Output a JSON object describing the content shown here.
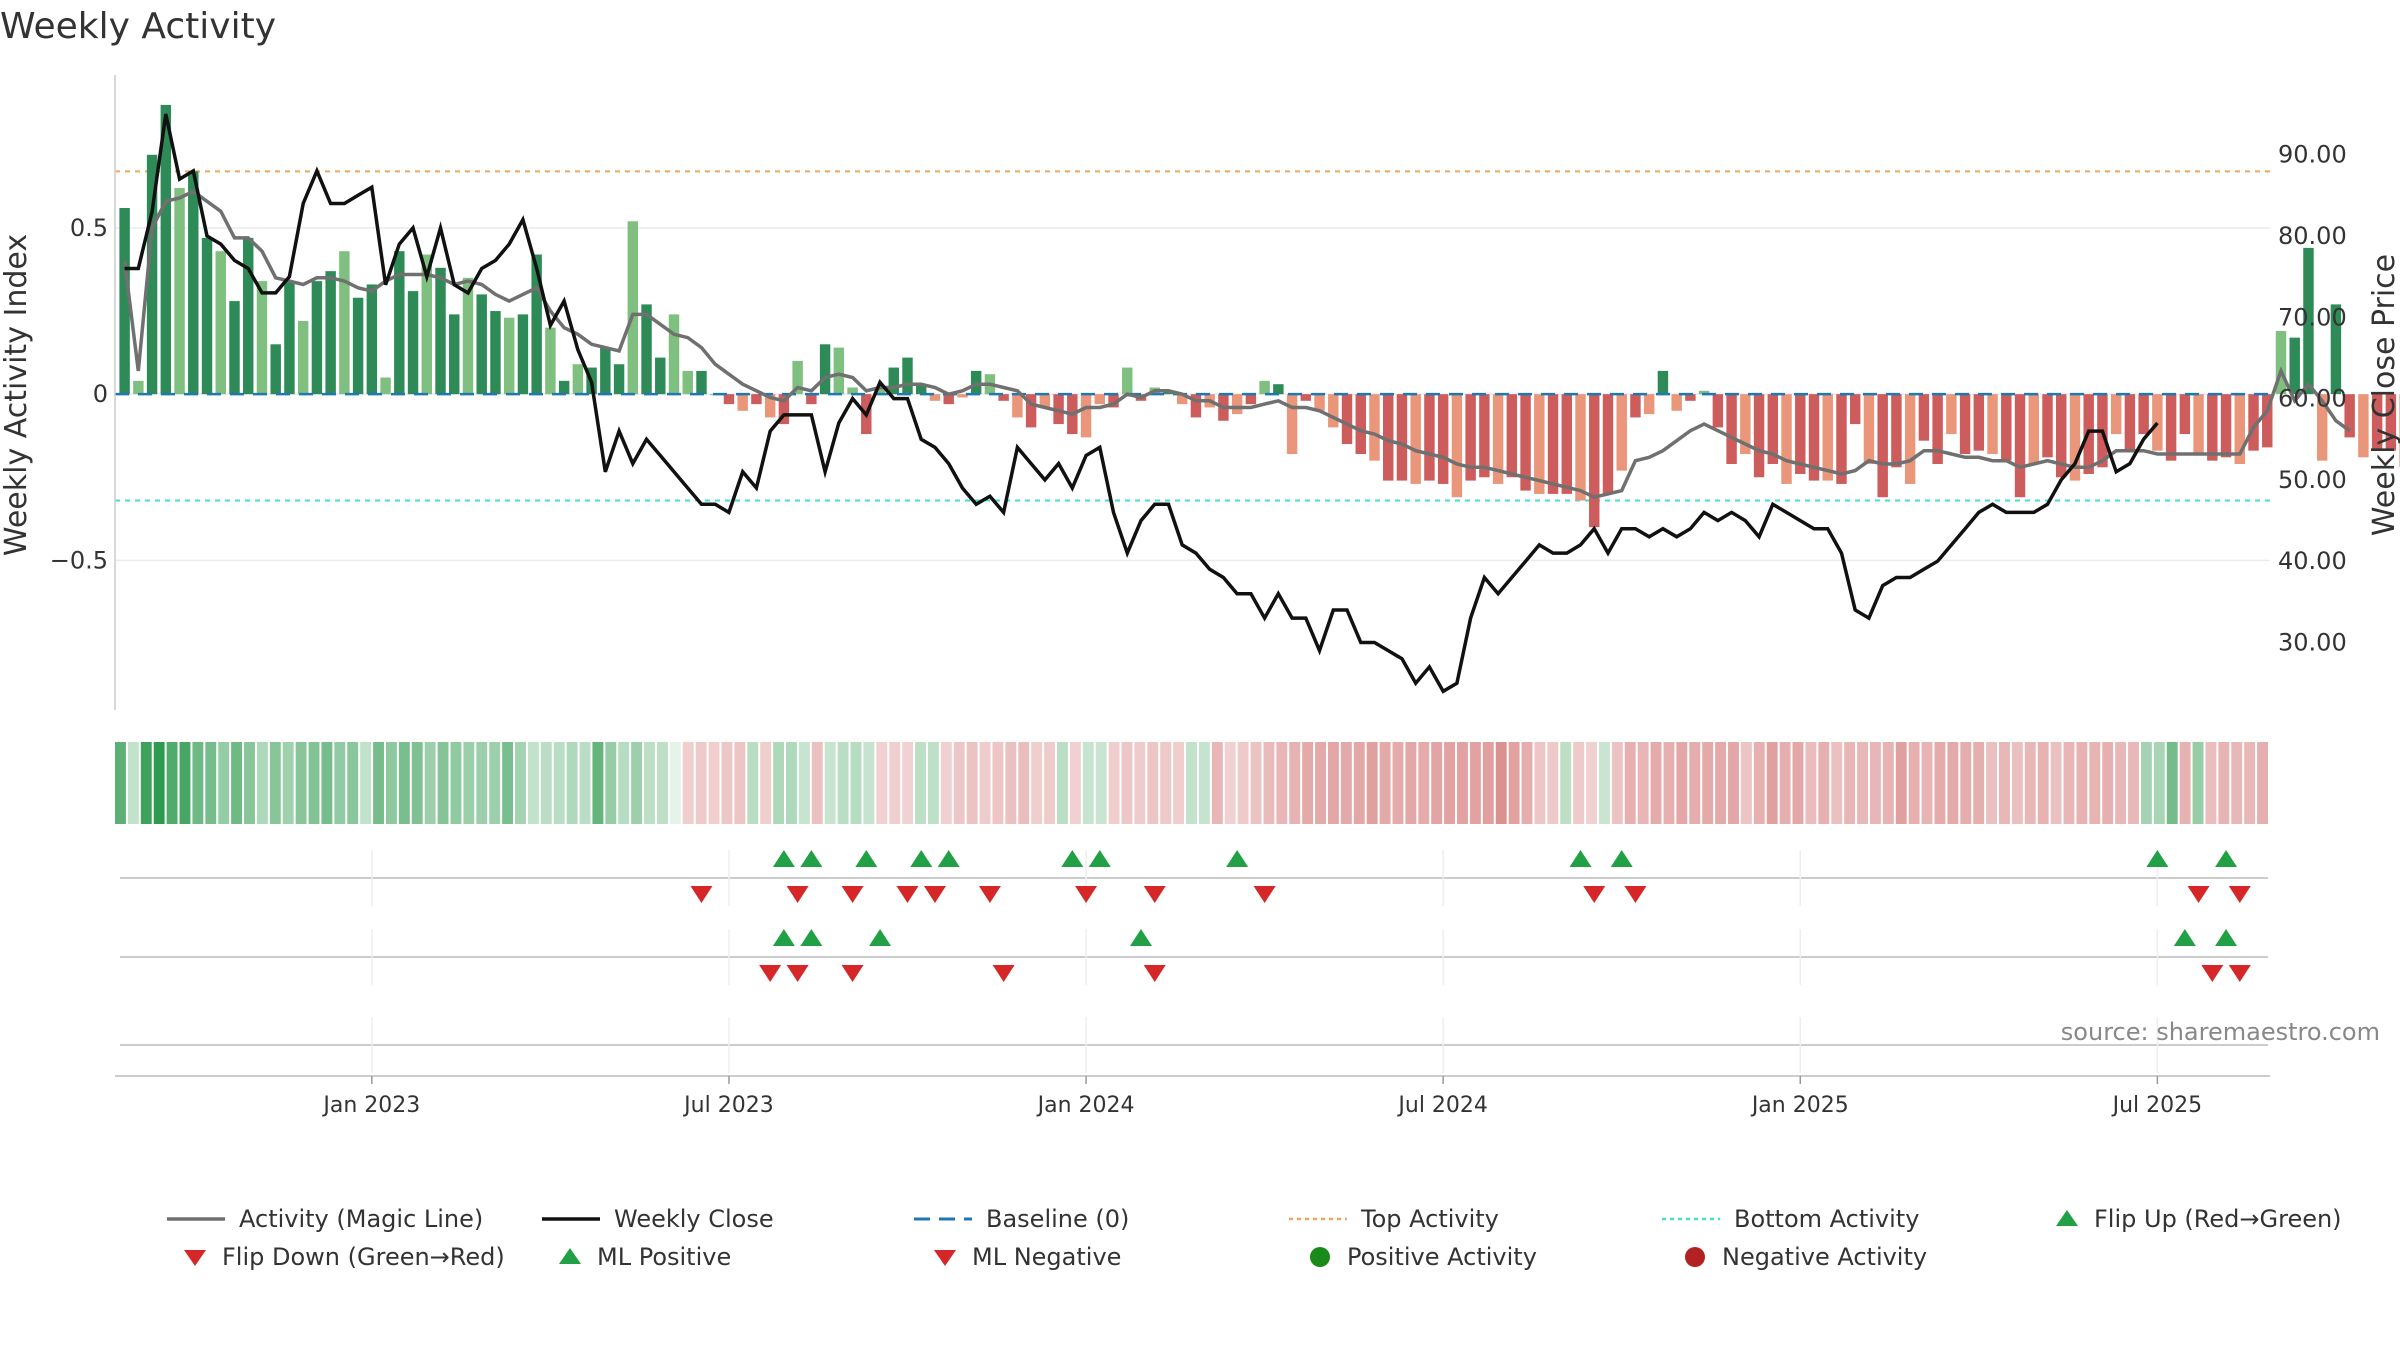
{
  "title": "Weekly Activity",
  "source": "source: sharemaestro.com",
  "colors": {
    "green_dark": "#2e8b57",
    "green_light": "#7fbf7f",
    "red_dark": "#cd5c5c",
    "red_light": "#e9967a",
    "magic_line": "#707070",
    "close_line": "#111111",
    "baseline": "#1f77b4",
    "top_line": "#f4a460",
    "bottom_line": "#40e0d0",
    "up_marker": "#22a045",
    "down_marker": "#d62728",
    "pos_dot": "#1a8a1a",
    "neg_dot": "#b22222"
  },
  "legend": [
    {
      "label": "Activity (Magic Line)",
      "icon": "gray-line"
    },
    {
      "label": "Weekly Close",
      "icon": "black-line"
    },
    {
      "label": "Baseline (0)",
      "icon": "blue-dashed-line"
    },
    {
      "label": "Top Activity",
      "icon": "orange-dotted-line"
    },
    {
      "label": "Bottom Activity",
      "icon": "cyan-dotted-line"
    },
    {
      "label": "Flip Up (Red→Green)",
      "icon": "green-triangle-up"
    },
    {
      "label": "Flip Down (Green→Red)",
      "icon": "red-triangle-down"
    },
    {
      "label": "ML Positive",
      "icon": "green-triangle-up"
    },
    {
      "label": "ML Negative",
      "icon": "red-triangle-down"
    },
    {
      "label": "Positive Activity",
      "icon": "green-circle"
    },
    {
      "label": "Negative Activity",
      "icon": "red-circle"
    }
  ],
  "chart_data": {
    "type": "bar",
    "title": "Weekly Activity",
    "ylabel": "Weekly Activity Index",
    "y2label": "Weekly Close Price",
    "ylim": [
      -0.95,
      0.96
    ],
    "y2lim": [
      21.7,
      99.8
    ],
    "y_ticks": [
      {
        "v": 0.5,
        "label": "0.5"
      },
      {
        "v": 0,
        "label": "0"
      },
      {
        "v": -0.5,
        "label": "−0.5"
      }
    ],
    "y2_ticks": [
      {
        "v": 90,
        "label": "90.00"
      },
      {
        "v": 80,
        "label": "80.00"
      },
      {
        "v": 70,
        "label": "70.00"
      },
      {
        "v": 60,
        "label": "60.00"
      },
      {
        "v": 50,
        "label": "50.00"
      },
      {
        "v": 40,
        "label": "40.00"
      },
      {
        "v": 30,
        "label": "30.00"
      }
    ],
    "x_ticks": [
      {
        "week": 18,
        "label": "Jan 2023"
      },
      {
        "week": 44,
        "label": "Jul 2023"
      },
      {
        "week": 70,
        "label": "Jan 2024"
      },
      {
        "week": 96,
        "label": "Jul 2024"
      },
      {
        "week": 122,
        "label": "Jan 2025"
      },
      {
        "week": 148,
        "label": "Jul 2025"
      }
    ],
    "x_range": [
      -0.7,
      156.2
    ],
    "top_activity": 0.67,
    "bottom_activity": -0.32,
    "baseline": 0,
    "activity": [
      0.56,
      0.04,
      0.72,
      0.87,
      0.62,
      0.67,
      0.47,
      0.43,
      0.28,
      0.47,
      0.34,
      0.15,
      0.34,
      0.22,
      0.34,
      0.37,
      0.43,
      0.29,
      0.33,
      0.05,
      0.43,
      0.31,
      0.42,
      0.38,
      0.24,
      0.35,
      0.3,
      0.25,
      0.23,
      0.24,
      0.42,
      0.2,
      0.04,
      0.09,
      0.08,
      0.14,
      0.09,
      0.52,
      0.27,
      0.11,
      0.24,
      0.07,
      0.07,
      0,
      -0.03,
      -0.05,
      -0.03,
      -0.07,
      -0.09,
      0.1,
      -0.03,
      0.15,
      0.14,
      0.02,
      -0.12,
      0.02,
      0.08,
      0.11,
      0.03,
      -0.02,
      -0.03,
      -0.01,
      0.07,
      0.06,
      -0.02,
      -0.07,
      -0.1,
      -0.04,
      -0.09,
      -0.12,
      -0.13,
      -0.03,
      -0.04,
      0.08,
      -0.02,
      0.02,
      0.01,
      -0.03,
      -0.07,
      -0.04,
      -0.08,
      -0.06,
      -0.03,
      0.04,
      0.03,
      -0.18,
      -0.02,
      -0.05,
      -0.1,
      -0.15,
      -0.18,
      -0.2,
      -0.26,
      -0.26,
      -0.27,
      -0.26,
      -0.27,
      -0.31,
      -0.26,
      -0.25,
      -0.27,
      -0.25,
      -0.29,
      -0.3,
      -0.3,
      -0.3,
      -0.32,
      -0.4,
      -0.3,
      -0.23,
      -0.07,
      -0.06,
      0.07,
      -0.05,
      -0.02,
      0.01,
      -0.1,
      -0.21,
      -0.18,
      -0.25,
      -0.21,
      -0.27,
      -0.24,
      -0.26,
      -0.26,
      -0.27,
      -0.09,
      -0.21,
      -0.31,
      -0.22,
      -0.27,
      -0.14,
      -0.21,
      -0.12,
      -0.18,
      -0.17,
      -0.18,
      -0.2,
      -0.31,
      -0.21,
      -0.19,
      -0.25,
      -0.26,
      -0.24,
      -0.22,
      -0.12,
      -0.17,
      -0.12,
      -0.17,
      -0.2,
      -0.12,
      -0.18,
      -0.2,
      -0.19,
      -0.21,
      -0.17,
      -0.16
    ],
    "activity_tail": [
      0.19,
      0.17,
      0.44,
      -0.2,
      0.27,
      -0.13,
      -0.19,
      -0.17,
      -0.17,
      -0.22
    ],
    "magic_line": [
      0.4,
      0.07,
      0.5,
      0.58,
      0.59,
      0.61,
      0.58,
      0.55,
      0.47,
      0.47,
      0.43,
      0.35,
      0.34,
      0.33,
      0.35,
      0.35,
      0.34,
      0.32,
      0.31,
      0.34,
      0.36,
      0.36,
      0.36,
      0.35,
      0.33,
      0.34,
      0.33,
      0.3,
      0.28,
      0.3,
      0.32,
      0.25,
      0.2,
      0.18,
      0.15,
      0.14,
      0.13,
      0.24,
      0.24,
      0.21,
      0.18,
      0.17,
      0.14,
      0.09,
      0.06,
      0.03,
      0.01,
      -0.01,
      -0.02,
      0.02,
      0.01,
      0.05,
      0.06,
      0.05,
      0.01,
      0.02,
      0.02,
      0.03,
      0.03,
      0.02,
      0,
      0.01,
      0.03,
      0.03,
      0.02,
      0.01,
      -0.03,
      -0.04,
      -0.05,
      -0.06,
      -0.04,
      -0.04,
      -0.03,
      0,
      -0.01,
      0.01,
      0.01,
      0,
      -0.02,
      -0.02,
      -0.04,
      -0.04,
      -0.04,
      -0.03,
      -0.02,
      -0.04,
      -0.04,
      -0.05,
      -0.07,
      -0.09,
      -0.11,
      -0.12,
      -0.14,
      -0.15,
      -0.17,
      -0.18,
      -0.19,
      -0.21,
      -0.22,
      -0.22,
      -0.23,
      -0.24,
      -0.25,
      -0.26,
      -0.27,
      -0.28,
      -0.29,
      -0.31,
      -0.3,
      -0.29,
      -0.2,
      -0.19,
      -0.17,
      -0.14,
      -0.11,
      -0.09,
      -0.11,
      -0.13,
      -0.15,
      -0.17,
      -0.18,
      -0.2,
      -0.21,
      -0.22,
      -0.23,
      -0.24,
      -0.23,
      -0.2,
      -0.21,
      -0.21,
      -0.2,
      -0.17,
      -0.17,
      -0.18,
      -0.19,
      -0.19,
      -0.2,
      -0.2,
      -0.22,
      -0.21,
      -0.2,
      -0.21,
      -0.22,
      -0.22,
      -0.2,
      -0.17,
      -0.17,
      -0.17,
      -0.18,
      -0.18,
      -0.18,
      -0.18,
      -0.18,
      -0.18,
      -0.18,
      -0.1,
      -0.05,
      0.07,
      -0.02,
      0.03,
      -0.02,
      -0.08,
      -0.11
    ],
    "close": [
      76,
      76,
      83,
      95,
      87,
      88,
      80,
      79,
      77,
      76,
      73,
      73,
      75,
      84,
      88,
      84,
      84,
      85,
      86,
      74,
      79,
      81,
      75,
      81,
      74,
      73,
      76,
      77,
      79,
      82,
      76,
      69,
      72,
      66,
      62,
      51,
      56,
      52,
      55,
      53,
      51,
      49,
      47,
      47,
      46,
      51,
      49,
      56,
      58,
      58,
      58,
      51,
      57,
      60,
      58,
      62,
      60,
      60,
      55,
      54,
      52,
      49,
      47,
      48,
      46,
      54,
      52,
      50,
      52,
      49,
      53,
      54,
      46,
      41,
      45,
      47,
      47,
      42,
      41,
      39,
      38,
      36,
      36,
      33,
      36,
      33,
      33,
      29,
      34,
      34,
      30,
      30,
      29,
      28,
      25,
      27,
      24,
      25,
      33,
      38,
      36,
      38,
      40,
      42,
      41,
      41,
      42,
      44,
      41,
      44,
      44,
      43,
      44,
      43,
      44,
      46,
      45,
      46,
      45,
      43,
      47,
      46,
      45,
      44,
      44,
      41,
      34,
      33,
      37,
      38,
      38,
      39,
      40,
      42,
      44,
      46,
      47,
      46,
      46,
      46,
      47,
      50,
      52,
      56,
      56,
      51,
      52,
      55,
      57
    ],
    "flip_up": [
      48,
      50,
      54,
      58,
      60,
      69,
      71,
      81,
      106,
      109,
      148,
      153
    ],
    "flip_down": [
      42,
      49,
      53,
      57,
      59,
      63,
      70,
      75,
      83,
      107,
      110,
      151,
      154
    ],
    "ml_positive": [
      48,
      50,
      55,
      74,
      150,
      153
    ],
    "ml_negative": [
      47,
      49,
      53,
      64,
      75,
      152,
      154
    ],
    "signal_rows": [
      "row1",
      "row2",
      "row3"
    ]
  }
}
